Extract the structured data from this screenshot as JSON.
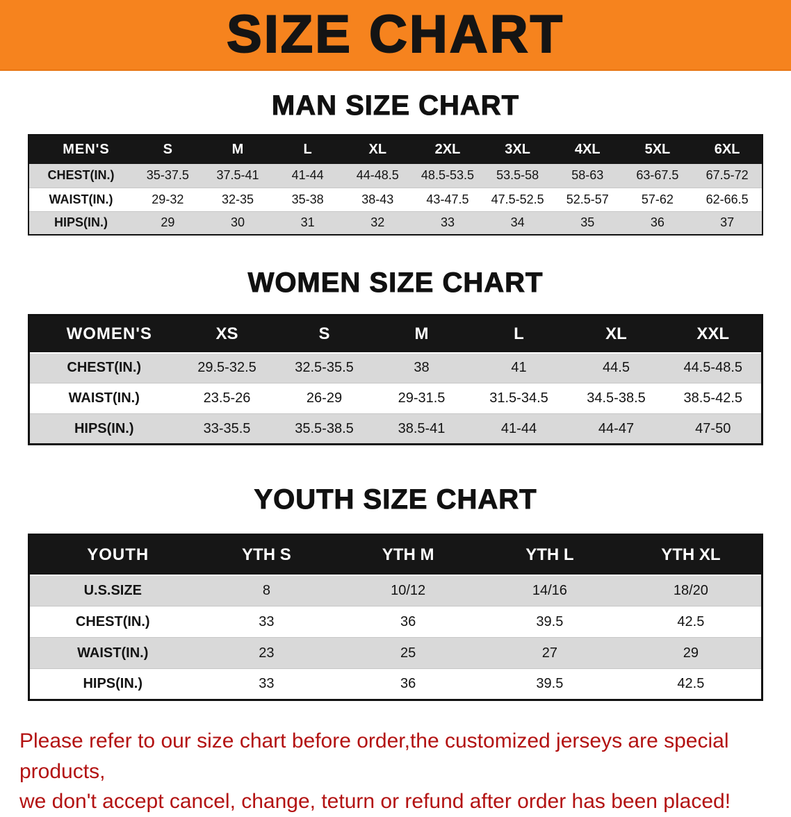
{
  "banner": {
    "title": "SIZE CHART",
    "bg_color": "#F6831E",
    "text_color": "#141414"
  },
  "sections": [
    {
      "id": "mens",
      "heading": "MAN SIZE CHART",
      "header_label": "MEN'S",
      "columns": [
        "S",
        "M",
        "L",
        "XL",
        "2XL",
        "3XL",
        "4XL",
        "5XL",
        "6XL"
      ],
      "rows": [
        {
          "label": "CHEST(IN.)",
          "values": [
            "35-37.5",
            "37.5-41",
            "41-44",
            "44-48.5",
            "48.5-53.5",
            "53.5-58",
            "58-63",
            "63-67.5",
            "67.5-72"
          ]
        },
        {
          "label": "WAIST(IN.)",
          "values": [
            "29-32",
            "32-35",
            "35-38",
            "38-43",
            "43-47.5",
            "47.5-52.5",
            "52.5-57",
            "57-62",
            "62-66.5"
          ]
        },
        {
          "label": "HIPS(IN.)",
          "values": [
            "29",
            "30",
            "31",
            "32",
            "33",
            "34",
            "35",
            "36",
            "37"
          ]
        }
      ]
    },
    {
      "id": "womens",
      "heading": "WOMEN SIZE CHART",
      "header_label": "WOMEN'S",
      "columns": [
        "XS",
        "S",
        "M",
        "L",
        "XL",
        "XXL"
      ],
      "rows": [
        {
          "label": "CHEST(IN.)",
          "values": [
            "29.5-32.5",
            "32.5-35.5",
            "38",
            "41",
            "44.5",
            "44.5-48.5"
          ]
        },
        {
          "label": "WAIST(IN.)",
          "values": [
            "23.5-26",
            "26-29",
            "29-31.5",
            "31.5-34.5",
            "34.5-38.5",
            "38.5-42.5"
          ]
        },
        {
          "label": "HIPS(IN.)",
          "values": [
            "33-35.5",
            "35.5-38.5",
            "38.5-41",
            "41-44",
            "44-47",
            "47-50"
          ]
        }
      ]
    },
    {
      "id": "youth",
      "heading": "YOUTH SIZE CHART",
      "header_label": "YOUTH",
      "columns": [
        "YTH S",
        "YTH M",
        "YTH L",
        "YTH XL"
      ],
      "rows": [
        {
          "label": "U.S.SIZE",
          "values": [
            "8",
            "10/12",
            "14/16",
            "18/20"
          ]
        },
        {
          "label": "CHEST(IN.)",
          "values": [
            "33",
            "36",
            "39.5",
            "42.5"
          ]
        },
        {
          "label": "WAIST(IN.)",
          "values": [
            "23",
            "25",
            "27",
            "29"
          ]
        },
        {
          "label": "HIPS(IN.)",
          "values": [
            "33",
            "36",
            "39.5",
            "42.5"
          ]
        }
      ]
    }
  ],
  "footer": {
    "line1": "Please refer to our size chart before order,the customized jerseys are special products,",
    "line2": "we don't accept cancel, change, teturn or refund after order has been placed!",
    "text_color": "#B31212"
  },
  "colors": {
    "table_header_bg": "#161616",
    "stripe_row_bg": "#D9D9D9",
    "table_border": "#111111"
  }
}
